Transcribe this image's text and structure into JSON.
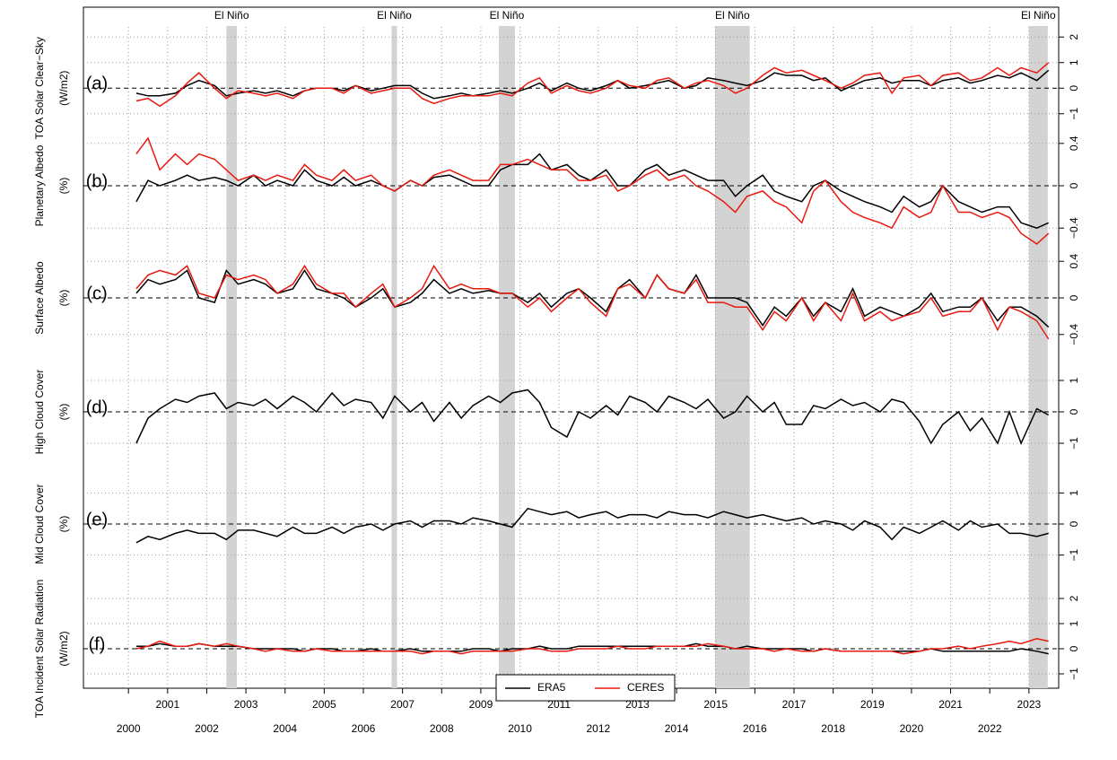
{
  "chart_data": {
    "type": "line",
    "xlim": [
      1998.85,
      2023.76
    ],
    "xticks": [
      2000,
      2001,
      2002,
      2003,
      2004,
      2005,
      2006,
      2007,
      2008,
      2009,
      2010,
      2011,
      2012,
      2013,
      2014,
      2015,
      2016,
      2017,
      2018,
      2019,
      2020,
      2021,
      2022,
      2023
    ],
    "grid": true,
    "x": [
      2000.2,
      2000.5,
      2000.8,
      2001.2,
      2001.5,
      2001.8,
      2002.2,
      2002.5,
      2002.8,
      2003.2,
      2003.5,
      2003.8,
      2004.2,
      2004.5,
      2004.8,
      2005.2,
      2005.5,
      2005.8,
      2006.2,
      2006.5,
      2006.8,
      2007.2,
      2007.5,
      2007.8,
      2008.2,
      2008.5,
      2008.8,
      2009.2,
      2009.5,
      2009.8,
      2010.2,
      2010.5,
      2010.8,
      2011.2,
      2011.5,
      2011.8,
      2012.2,
      2012.5,
      2012.8,
      2013.2,
      2013.5,
      2013.8,
      2014.2,
      2014.5,
      2014.8,
      2015.2,
      2015.5,
      2015.8,
      2016.2,
      2016.5,
      2016.8,
      2017.2,
      2017.5,
      2017.8,
      2018.2,
      2018.5,
      2018.8,
      2019.2,
      2019.5,
      2019.8,
      2020.2,
      2020.5,
      2020.8,
      2021.2,
      2021.5,
      2021.8,
      2022.2,
      2022.5,
      2022.8,
      2023.2,
      2023.5
    ],
    "el_nino": [
      {
        "label": "El Niño",
        "start": 2002.5,
        "end": 2002.77
      },
      {
        "label": "El Niño",
        "start": 2006.72,
        "end": 2006.86
      },
      {
        "label": "El Niño",
        "start": 2009.46,
        "end": 2009.87
      },
      {
        "label": "El Niño",
        "start": 2014.98,
        "end": 2015.87
      },
      {
        "label": "El Niño",
        "start": 2023.0,
        "end": 2023.48
      }
    ],
    "panels": [
      {
        "letter": "(a)",
        "ylabel": "TOA Solar Clear−Sky",
        "units": "(W/m2)",
        "ylim": [
          -1.5,
          2.5
        ],
        "yticks": [
          {
            "value": -1,
            "label": "−1"
          },
          0,
          1,
          2
        ],
        "series": [
          {
            "name": "ERA5",
            "color": "#000000",
            "values": [
              -0.2,
              -0.3,
              -0.3,
              -0.2,
              0.1,
              0.3,
              0.1,
              -0.3,
              -0.2,
              -0.1,
              -0.2,
              -0.1,
              -0.3,
              -0.1,
              0.0,
              0.0,
              -0.1,
              0.1,
              -0.1,
              0.0,
              0.1,
              0.1,
              -0.2,
              -0.4,
              -0.3,
              -0.2,
              -0.3,
              -0.2,
              -0.1,
              -0.2,
              0.0,
              0.2,
              -0.1,
              0.2,
              0.0,
              -0.1,
              0.1,
              0.3,
              0.0,
              0.1,
              0.2,
              0.3,
              0.0,
              0.1,
              0.4,
              0.3,
              0.2,
              0.1,
              0.3,
              0.6,
              0.5,
              0.5,
              0.3,
              0.4,
              -0.1,
              0.1,
              0.3,
              0.4,
              0.2,
              0.3,
              0.3,
              0.1,
              0.3,
              0.4,
              0.2,
              0.3,
              0.5,
              0.4,
              0.6,
              0.3,
              0.7
            ]
          },
          {
            "name": "CERES",
            "color": "#e8190f",
            "values": [
              -0.5,
              -0.4,
              -0.7,
              -0.3,
              0.2,
              0.6,
              0.0,
              -0.4,
              -0.1,
              -0.2,
              -0.3,
              -0.2,
              -0.4,
              -0.1,
              0.0,
              0.0,
              -0.2,
              0.1,
              -0.2,
              -0.1,
              0.0,
              0.0,
              -0.4,
              -0.6,
              -0.4,
              -0.3,
              -0.3,
              -0.3,
              -0.2,
              -0.3,
              0.2,
              0.4,
              -0.2,
              0.1,
              -0.1,
              -0.2,
              0.0,
              0.3,
              0.1,
              0.0,
              0.3,
              0.4,
              0.0,
              0.2,
              0.3,
              0.1,
              -0.2,
              0.0,
              0.5,
              0.8,
              0.6,
              0.7,
              0.5,
              0.3,
              0.0,
              0.2,
              0.5,
              0.6,
              -0.2,
              0.4,
              0.5,
              0.1,
              0.5,
              0.6,
              0.3,
              0.4,
              0.8,
              0.5,
              0.8,
              0.6,
              1.0
            ]
          }
        ]
      },
      {
        "letter": "(b)",
        "ylabel": "Planetary Albedo",
        "units": "(%)",
        "ylim": [
          -0.5,
          0.5
        ],
        "yticks": [
          {
            "value": -0.4,
            "label": "−0.4"
          },
          0,
          0.4
        ],
        "series": [
          {
            "name": "ERA5",
            "color": "#000000",
            "values": [
              -0.15,
              0.05,
              0.0,
              0.05,
              0.1,
              0.05,
              0.08,
              0.05,
              0.0,
              0.1,
              0.0,
              0.05,
              0.0,
              0.15,
              0.05,
              0.0,
              0.08,
              0.0,
              0.05,
              0.0,
              -0.05,
              0.05,
              0.0,
              0.08,
              0.1,
              0.05,
              0.0,
              0.0,
              0.15,
              0.2,
              0.2,
              0.3,
              0.15,
              0.2,
              0.1,
              0.05,
              0.15,
              0.0,
              0.0,
              0.15,
              0.2,
              0.1,
              0.15,
              0.1,
              0.05,
              0.05,
              -0.1,
              0.0,
              0.1,
              -0.05,
              -0.1,
              -0.15,
              0.0,
              0.05,
              -0.05,
              -0.1,
              -0.15,
              -0.2,
              -0.25,
              -0.1,
              -0.2,
              -0.15,
              0.0,
              -0.15,
              -0.2,
              -0.25,
              -0.2,
              -0.2,
              -0.35,
              -0.4,
              -0.35
            ]
          },
          {
            "name": "CERES",
            "color": "#e8190f",
            "values": [
              0.3,
              0.45,
              0.15,
              0.3,
              0.2,
              0.3,
              0.25,
              0.15,
              0.05,
              0.1,
              0.05,
              0.1,
              0.05,
              0.2,
              0.1,
              0.05,
              0.15,
              0.05,
              0.1,
              0.0,
              -0.05,
              0.05,
              0.0,
              0.1,
              0.15,
              0.1,
              0.05,
              0.05,
              0.2,
              0.2,
              0.25,
              0.2,
              0.15,
              0.15,
              0.05,
              0.05,
              0.1,
              -0.05,
              0.0,
              0.1,
              0.15,
              0.05,
              0.1,
              0.0,
              -0.05,
              -0.15,
              -0.25,
              -0.1,
              -0.05,
              -0.15,
              -0.2,
              -0.35,
              -0.05,
              0.05,
              -0.15,
              -0.25,
              -0.3,
              -0.35,
              -0.4,
              -0.2,
              -0.3,
              -0.25,
              0.0,
              -0.25,
              -0.25,
              -0.3,
              -0.25,
              -0.3,
              -0.45,
              -0.55,
              -0.45
            ]
          }
        ]
      },
      {
        "letter": "(c)",
        "ylabel": "Surface Albedo",
        "units": "(%)",
        "ylim": [
          -0.5,
          0.5
        ],
        "yticks": [
          {
            "value": -0.4,
            "label": "−0.4"
          },
          0,
          0.4
        ],
        "series": [
          {
            "name": "ERA5",
            "color": "#000000",
            "values": [
              0.05,
              0.2,
              0.15,
              0.2,
              0.3,
              0.0,
              -0.05,
              0.3,
              0.15,
              0.2,
              0.15,
              0.05,
              0.1,
              0.3,
              0.1,
              0.05,
              0.0,
              -0.1,
              0.0,
              0.1,
              -0.1,
              -0.05,
              0.05,
              0.2,
              0.05,
              0.1,
              0.05,
              0.08,
              0.05,
              0.05,
              -0.05,
              0.05,
              -0.1,
              0.05,
              0.1,
              0.0,
              -0.15,
              0.1,
              0.2,
              0.0,
              0.25,
              0.1,
              0.05,
              0.25,
              0.0,
              0.0,
              0.0,
              -0.05,
              -0.3,
              -0.1,
              -0.2,
              0.0,
              -0.2,
              -0.05,
              -0.15,
              0.1,
              -0.2,
              -0.1,
              -0.15,
              -0.2,
              -0.1,
              0.05,
              -0.15,
              -0.1,
              -0.1,
              0.0,
              -0.25,
              -0.1,
              -0.1,
              -0.2,
              -0.32
            ]
          },
          {
            "name": "CERES",
            "color": "#e8190f",
            "values": [
              0.1,
              0.25,
              0.3,
              0.25,
              0.35,
              0.05,
              0.0,
              0.25,
              0.2,
              0.25,
              0.2,
              0.05,
              0.15,
              0.35,
              0.15,
              0.05,
              0.05,
              -0.1,
              0.05,
              0.15,
              -0.1,
              0.0,
              0.1,
              0.35,
              0.1,
              0.15,
              0.1,
              0.1,
              0.05,
              0.05,
              -0.1,
              0.0,
              -0.15,
              0.0,
              0.1,
              -0.05,
              -0.2,
              0.1,
              0.15,
              0.0,
              0.25,
              0.1,
              0.05,
              0.2,
              -0.05,
              -0.05,
              -0.1,
              -0.1,
              -0.35,
              -0.15,
              -0.25,
              0.0,
              -0.25,
              -0.05,
              -0.25,
              0.05,
              -0.25,
              -0.15,
              -0.25,
              -0.2,
              -0.15,
              0.0,
              -0.2,
              -0.15,
              -0.15,
              0.0,
              -0.35,
              -0.1,
              -0.15,
              -0.25,
              -0.45
            ]
          }
        ]
      },
      {
        "letter": "(d)",
        "ylabel": "High Cloud Cover",
        "units": "(%)",
        "ylim": [
          -1.3,
          1.3
        ],
        "yticks": [
          {
            "value": -1,
            "label": "−1"
          },
          0,
          1
        ],
        "series": [
          {
            "name": "ERA5",
            "color": "#000000",
            "values": [
              -1.0,
              -0.2,
              0.1,
              0.4,
              0.3,
              0.5,
              0.6,
              0.1,
              0.3,
              0.2,
              0.4,
              0.1,
              0.5,
              0.3,
              0.0,
              0.6,
              0.2,
              0.4,
              0.3,
              -0.2,
              0.5,
              0.0,
              0.3,
              -0.3,
              0.3,
              -0.2,
              0.2,
              0.5,
              0.3,
              0.6,
              0.7,
              0.3,
              -0.5,
              -0.8,
              0.0,
              -0.2,
              0.2,
              -0.1,
              0.5,
              0.3,
              0.0,
              0.5,
              0.3,
              0.1,
              0.4,
              -0.2,
              0.0,
              0.5,
              0.0,
              0.3,
              -0.4,
              -0.4,
              0.2,
              0.1,
              0.4,
              0.2,
              0.3,
              0.0,
              0.4,
              0.3,
              -0.3,
              -1.0,
              -0.4,
              0.0,
              -0.6,
              -0.2,
              -1.0,
              0.0,
              -1.0,
              0.1,
              -0.1
            ]
          }
        ]
      },
      {
        "letter": "(e)",
        "ylabel": "Mid Cloud Cover",
        "units": "(%)",
        "ylim": [
          -1.3,
          1.3
        ],
        "yticks": [
          {
            "value": -1,
            "label": "−1"
          },
          0,
          1
        ],
        "series": [
          {
            "name": "ERA5",
            "color": "#000000",
            "values": [
              -0.6,
              -0.4,
              -0.5,
              -0.3,
              -0.2,
              -0.3,
              -0.3,
              -0.5,
              -0.2,
              -0.2,
              -0.3,
              -0.4,
              -0.1,
              -0.3,
              -0.3,
              -0.1,
              -0.3,
              -0.1,
              0.0,
              -0.2,
              0.0,
              0.1,
              -0.1,
              0.1,
              0.1,
              0.0,
              0.2,
              0.1,
              0.0,
              -0.1,
              0.5,
              0.4,
              0.3,
              0.4,
              0.2,
              0.3,
              0.4,
              0.2,
              0.3,
              0.3,
              0.2,
              0.4,
              0.3,
              0.3,
              0.2,
              0.4,
              0.3,
              0.2,
              0.3,
              0.2,
              0.1,
              0.2,
              0.0,
              0.1,
              0.0,
              -0.2,
              0.1,
              -0.1,
              -0.5,
              -0.1,
              -0.3,
              -0.1,
              0.1,
              -0.2,
              0.1,
              -0.1,
              0.0,
              -0.3,
              -0.3,
              -0.4,
              -0.3
            ]
          }
        ]
      },
      {
        "letter": "(f)",
        "ylabel": "TOA Incident Solar Radiation",
        "units": "(W/m2)",
        "ylim": [
          -1.5,
          2.5
        ],
        "yticks": [
          {
            "value": -1,
            "label": "−1"
          },
          0,
          1,
          2
        ],
        "series": [
          {
            "name": "ERA5",
            "color": "#000000",
            "values": [
              0.1,
              0.1,
              0.2,
              0.1,
              0.1,
              0.2,
              0.1,
              0.1,
              0.1,
              0.0,
              0.0,
              0.0,
              0.0,
              -0.1,
              0.0,
              0.0,
              -0.1,
              -0.1,
              0.0,
              -0.1,
              -0.1,
              0.0,
              -0.1,
              -0.1,
              -0.1,
              -0.1,
              0.0,
              0.0,
              -0.1,
              0.0,
              0.0,
              0.1,
              0.0,
              0.0,
              0.1,
              0.1,
              0.1,
              0.1,
              0.1,
              0.1,
              0.1,
              0.1,
              0.1,
              0.2,
              0.1,
              0.1,
              0.0,
              0.1,
              0.0,
              0.0,
              0.0,
              0.0,
              -0.1,
              0.0,
              -0.1,
              -0.1,
              -0.1,
              -0.1,
              -0.1,
              -0.1,
              -0.1,
              0.0,
              -0.1,
              -0.1,
              -0.1,
              -0.1,
              -0.1,
              -0.1,
              0.0,
              -0.1,
              -0.2
            ]
          },
          {
            "name": "CERES",
            "color": "#e8190f",
            "values": [
              0.0,
              0.1,
              0.3,
              0.1,
              0.1,
              0.2,
              0.1,
              0.2,
              0.1,
              0.0,
              -0.1,
              0.0,
              -0.1,
              -0.1,
              0.0,
              -0.1,
              -0.1,
              -0.1,
              -0.1,
              -0.1,
              -0.1,
              -0.1,
              -0.2,
              -0.1,
              -0.1,
              -0.2,
              -0.1,
              -0.1,
              -0.1,
              -0.1,
              0.0,
              0.0,
              -0.1,
              -0.1,
              0.0,
              0.0,
              0.0,
              0.1,
              0.0,
              0.0,
              0.1,
              0.1,
              0.1,
              0.1,
              0.2,
              0.1,
              0.0,
              0.0,
              0.0,
              -0.1,
              0.0,
              -0.1,
              -0.1,
              0.0,
              -0.1,
              -0.1,
              -0.1,
              -0.1,
              -0.1,
              -0.2,
              -0.1,
              0.0,
              0.0,
              0.1,
              0.0,
              0.1,
              0.2,
              0.3,
              0.2,
              0.4,
              0.3
            ]
          }
        ]
      }
    ]
  }
}
